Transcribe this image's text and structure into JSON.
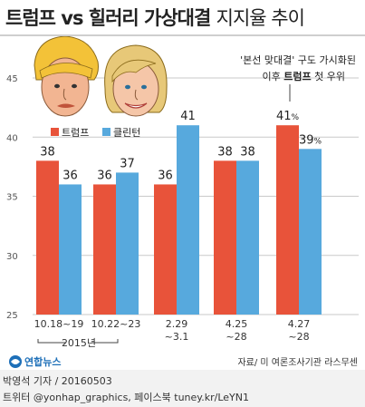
{
  "header": {
    "title_main": "트럼프 vs 힐러리 가상대결",
    "title_sub": "지지율 추이"
  },
  "annotation": {
    "line1": "'본선 맞대결' 구도 가시화된",
    "line2_pre": "이후",
    "line2_bold": "트럼프",
    "line2_post": "첫 우위"
  },
  "colors": {
    "trump": "#e8533a",
    "clinton": "#57a9dd",
    "grid": "#c9c9c9"
  },
  "chart_data": {
    "type": "bar",
    "title": "트럼프 vs 힐러리 가상대결 지지율 추이",
    "categories": [
      [
        "10.18~19"
      ],
      [
        "10.22~23"
      ],
      [
        "2.29",
        "~3.1"
      ],
      [
        "4.25",
        "~28"
      ],
      [
        "4.27",
        "~28"
      ]
    ],
    "group_label": "2015년",
    "series": [
      {
        "name": "트럼프",
        "values": [
          38,
          36,
          36,
          38,
          41
        ],
        "value_labels": [
          "38",
          "36",
          "36",
          "38",
          "41%"
        ]
      },
      {
        "name": "클린턴",
        "values": [
          36,
          37,
          41,
          38,
          39
        ],
        "value_labels": [
          "36",
          "37",
          "41",
          "38",
          "39%"
        ]
      }
    ],
    "ylim": [
      25,
      45
    ],
    "yticks": [
      25,
      30,
      35,
      40,
      45
    ],
    "grid": true,
    "legend_position": "top-left",
    "source": "자료/ 미 여론조사기관 라스무센"
  },
  "logo_text": "연합뉴스",
  "footer": {
    "line1": "박영석 기자 / 20160503",
    "line2": "트위터 @yonhap_graphics, 페이스북 tuney.kr/LeYN1"
  }
}
